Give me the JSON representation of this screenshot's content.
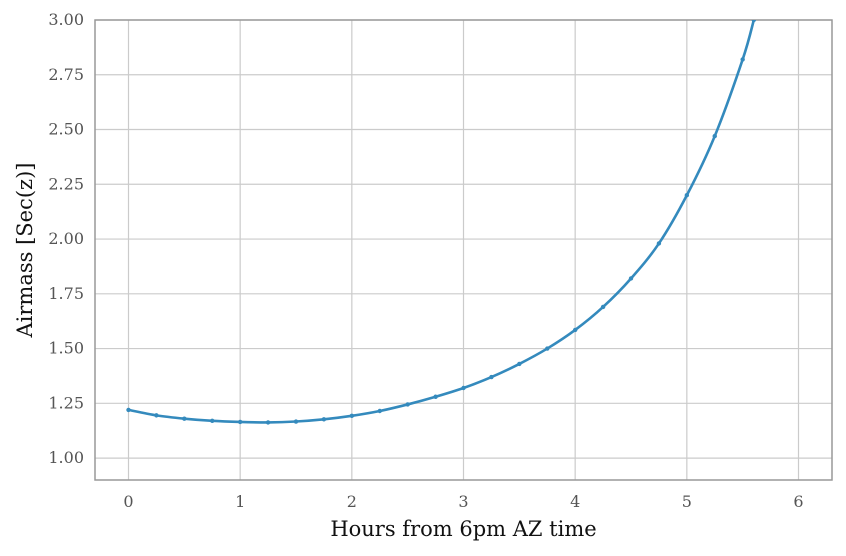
{
  "chart_data": {
    "type": "line",
    "title": "",
    "xlabel": "Hours from 6pm AZ time",
    "ylabel": "Airmass [Sec(z)]",
    "xlim": [
      -0.3,
      6.3
    ],
    "ylim": [
      0.9,
      3.0
    ],
    "xticks": [
      0,
      1,
      2,
      3,
      4,
      5,
      6
    ],
    "xtick_labels": [
      "0",
      "1",
      "2",
      "3",
      "4",
      "5",
      "6"
    ],
    "yticks": [
      1.0,
      1.25,
      1.5,
      1.75,
      2.0,
      2.25,
      2.5,
      2.75,
      3.0
    ],
    "ytick_labels": [
      "1.00",
      "1.25",
      "1.50",
      "1.75",
      "2.00",
      "2.25",
      "2.50",
      "2.75",
      "3.00"
    ],
    "grid": true,
    "colors": {
      "series": "#348abd",
      "grid": "#cbcbcb",
      "frame": "#999999"
    },
    "series": [
      {
        "x": [
          0,
          0.25,
          0.5,
          0.75,
          1.0,
          1.25,
          1.5,
          1.75,
          2.0,
          2.25,
          2.5,
          2.75,
          3.0,
          3.25,
          3.5,
          3.75,
          4.0,
          4.25,
          4.5,
          4.75,
          5.0,
          5.25,
          5.5,
          5.6
        ],
        "values": [
          1.22,
          1.195,
          1.18,
          1.17,
          1.165,
          1.163,
          1.167,
          1.177,
          1.193,
          1.215,
          1.245,
          1.28,
          1.32,
          1.37,
          1.43,
          1.5,
          1.585,
          1.69,
          1.82,
          1.98,
          2.2,
          2.47,
          2.82,
          3.0
        ]
      }
    ]
  }
}
